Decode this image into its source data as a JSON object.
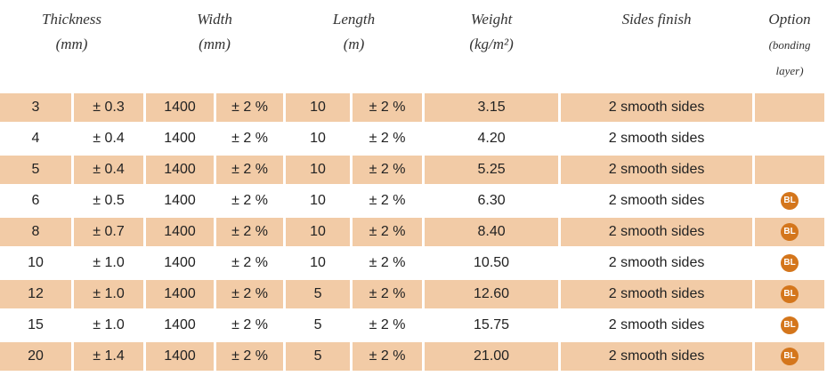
{
  "header": [
    [
      "Thickness",
      "(mm)"
    ],
    [
      "Width",
      "(mm)"
    ],
    [
      "Length",
      "(m)"
    ],
    [
      "Weight",
      "(kg/m²)"
    ],
    [
      "Sides finish"
    ],
    [
      "Option",
      "(bonding",
      "layer)"
    ]
  ],
  "table": {
    "rows": [
      [
        "3",
        "± 0.3",
        "1400",
        "± 2 %",
        "10",
        "± 2 %",
        "3.15",
        "2 smooth sides"
      ],
      [
        "4",
        "± 0.4",
        "1400",
        "± 2 %",
        "10",
        "± 2 %",
        "4.20",
        "2 smooth sides"
      ],
      [
        "5",
        "± 0.4",
        "1400",
        "± 2 %",
        "10",
        "± 2 %",
        "5.25",
        "2 smooth sides"
      ],
      [
        "6",
        "± 0.5",
        "1400",
        "± 2 %",
        "10",
        "± 2 %",
        "6.30",
        "2 smooth sides",
        "BL"
      ],
      [
        "8",
        "± 0.7",
        "1400",
        "± 2 %",
        "10",
        "± 2 %",
        "8.40",
        "2 smooth sides",
        "BL"
      ],
      [
        "10",
        "± 1.0",
        "1400",
        "± 2 %",
        "10",
        "± 2 %",
        "10.50",
        "2 smooth sides",
        "BL"
      ],
      [
        "12",
        "± 1.0",
        "1400",
        "± 2 %",
        "5",
        "± 2 %",
        "12.60",
        "2 smooth sides",
        "BL"
      ],
      [
        "15",
        "± 1.0",
        "1400",
        "± 2 %",
        "5",
        "± 2 %",
        "15.75",
        "2 smooth sides",
        "BL"
      ],
      [
        "20",
        "± 1.4",
        "1400",
        "± 2 %",
        "5",
        "± 2 %",
        "21.00",
        "2 smooth sides",
        "BL"
      ]
    ]
  }
}
